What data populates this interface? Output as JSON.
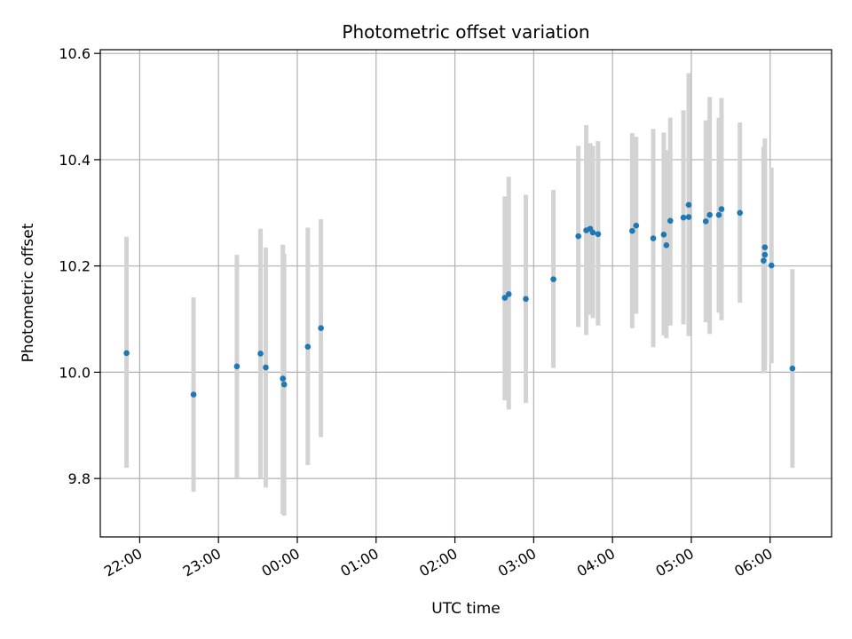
{
  "chart_data": {
    "type": "scatter",
    "title": "Photometric offset variation",
    "xlabel": "UTC time",
    "ylabel": "Photometric offset",
    "x_unit": "UTC hh:mm (hours after 21:00 of the first night; values >= 24 fall after midnight)",
    "xlim_hours": [
      21.5,
      30.78
    ],
    "ylim": [
      9.69,
      10.607
    ],
    "grid": true,
    "x_ticks": [
      {
        "hours": 22,
        "label": "22:00"
      },
      {
        "hours": 23,
        "label": "23:00"
      },
      {
        "hours": 24,
        "label": "00:00"
      },
      {
        "hours": 25,
        "label": "01:00"
      },
      {
        "hours": 26,
        "label": "02:00"
      },
      {
        "hours": 27,
        "label": "03:00"
      },
      {
        "hours": 28,
        "label": "04:00"
      },
      {
        "hours": 29,
        "label": "05:00"
      },
      {
        "hours": 30,
        "label": "06:00"
      }
    ],
    "y_ticks": [
      {
        "value": 9.8,
        "label": "9.8"
      },
      {
        "value": 10.0,
        "label": "10.0"
      },
      {
        "value": 10.2,
        "label": "10.2"
      },
      {
        "value": 10.4,
        "label": "10.4"
      },
      {
        "value": 10.6,
        "label": "10.6"
      }
    ],
    "marker_color": "#1f77b4",
    "errorbar_color": "#d3d3d3",
    "series": [
      {
        "points": [
          {
            "time": "21:50",
            "y": 10.036,
            "low": 9.82,
            "high": 10.255
          },
          {
            "time": "22:41",
            "y": 9.958,
            "low": 9.775,
            "high": 10.141
          },
          {
            "time": "23:14",
            "y": 10.011,
            "low": 9.8,
            "high": 10.221
          },
          {
            "time": "23:32",
            "y": 10.035,
            "low": 9.8,
            "high": 10.27
          },
          {
            "time": "23:36",
            "y": 10.009,
            "low": 9.783,
            "high": 10.235
          },
          {
            "time": "23:49",
            "y": 9.988,
            "low": 9.733,
            "high": 10.24
          },
          {
            "time": "23:50",
            "y": 9.977,
            "low": 9.73,
            "high": 10.223
          },
          {
            "time": "00:08",
            "y": 10.048,
            "low": 9.825,
            "high": 10.272
          },
          {
            "time": "00:18",
            "y": 10.083,
            "low": 9.878,
            "high": 10.288
          },
          {
            "time": "02:38",
            "y": 10.14,
            "low": 9.947,
            "high": 10.331
          },
          {
            "time": "02:41",
            "y": 10.147,
            "low": 9.93,
            "high": 10.368
          },
          {
            "time": "02:54",
            "y": 10.138,
            "low": 9.942,
            "high": 10.334
          },
          {
            "time": "03:15",
            "y": 10.175,
            "low": 10.008,
            "high": 10.343
          },
          {
            "time": "03:34",
            "y": 10.256,
            "low": 10.085,
            "high": 10.426
          },
          {
            "time": "03:40",
            "y": 10.267,
            "low": 10.07,
            "high": 10.465
          },
          {
            "time": "03:43",
            "y": 10.27,
            "low": 10.108,
            "high": 10.431
          },
          {
            "time": "03:45",
            "y": 10.263,
            "low": 10.102,
            "high": 10.426
          },
          {
            "time": "03:49",
            "y": 10.26,
            "low": 10.088,
            "high": 10.435
          },
          {
            "time": "04:15",
            "y": 10.266,
            "low": 10.083,
            "high": 10.45
          },
          {
            "time": "04:18",
            "y": 10.276,
            "low": 10.11,
            "high": 10.443
          },
          {
            "time": "04:31",
            "y": 10.252,
            "low": 10.047,
            "high": 10.458
          },
          {
            "time": "04:39",
            "y": 10.259,
            "low": 10.069,
            "high": 10.451
          },
          {
            "time": "04:41",
            "y": 10.239,
            "low": 10.064,
            "high": 10.418
          },
          {
            "time": "04:44",
            "y": 10.285,
            "low": 10.088,
            "high": 10.479
          },
          {
            "time": "04:54",
            "y": 10.291,
            "low": 10.09,
            "high": 10.493
          },
          {
            "time": "04:58",
            "y": 10.292,
            "low": 10.068,
            "high": 10.563
          },
          {
            "time": "04:58",
            "y": 10.315,
            "low": 10.071,
            "high": 10.562
          },
          {
            "time": "05:11",
            "y": 10.284,
            "low": 10.094,
            "high": 10.474
          },
          {
            "time": "05:14",
            "y": 10.296,
            "low": 10.072,
            "high": 10.518
          },
          {
            "time": "05:21",
            "y": 10.296,
            "low": 10.112,
            "high": 10.479
          },
          {
            "time": "05:23",
            "y": 10.307,
            "low": 10.098,
            "high": 10.516
          },
          {
            "time": "05:37",
            "y": 10.3,
            "low": 10.131,
            "high": 10.47
          },
          {
            "time": "05:55",
            "y": 10.21,
            "low": 9.998,
            "high": 10.424
          },
          {
            "time": "05:56",
            "y": 10.221,
            "low": 10.003,
            "high": 10.44
          },
          {
            "time": "05:56",
            "y": 10.235,
            "low": 10.03,
            "high": 10.405
          },
          {
            "time": "06:01",
            "y": 10.201,
            "low": 10.017,
            "high": 10.385
          },
          {
            "time": "06:17",
            "y": 10.007,
            "low": 9.82,
            "high": 10.194
          }
        ]
      }
    ]
  }
}
